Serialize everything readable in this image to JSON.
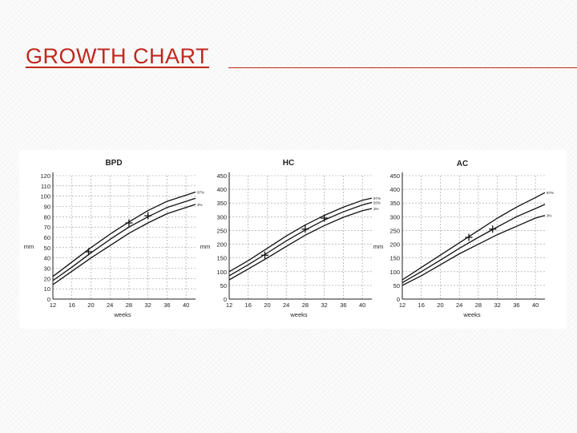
{
  "slide": {
    "title": "GROWTH CHART"
  },
  "colors": {
    "title": "#c0281f",
    "curve": "#111111",
    "grid": "#9a9a9a",
    "axis": "#222222"
  },
  "chart_data": [
    {
      "type": "line",
      "title": "BPD",
      "xlabel": "weeks",
      "ylabel": "mm",
      "x_ticks": [
        12,
        16,
        20,
        24,
        28,
        32,
        36,
        40
      ],
      "y_ticks": [
        0,
        10,
        20,
        30,
        40,
        50,
        60,
        70,
        80,
        90,
        100,
        110,
        120
      ],
      "xlim": [
        12,
        42
      ],
      "ylim": [
        0,
        120
      ],
      "grid": true,
      "series": [
        {
          "name": "97%",
          "x": [
            12,
            16,
            20,
            24,
            28,
            32,
            36,
            40,
            42
          ],
          "y": [
            22,
            36,
            50,
            63,
            75,
            86,
            95,
            101,
            104
          ]
        },
        {
          "name": "",
          "x": [
            12,
            16,
            20,
            24,
            28,
            32,
            36,
            40,
            42
          ],
          "y": [
            18,
            31,
            45,
            58,
            70,
            80,
            89,
            95,
            98
          ]
        },
        {
          "name": "3%",
          "x": [
            12,
            16,
            20,
            24,
            28,
            32,
            36,
            40,
            42
          ],
          "y": [
            14,
            27,
            40,
            52,
            64,
            74,
            83,
            89,
            92
          ]
        }
      ],
      "markers": [
        {
          "x": 19.5,
          "y": 46
        },
        {
          "x": 28,
          "y": 74
        },
        {
          "x": 32,
          "y": 81
        }
      ]
    },
    {
      "type": "line",
      "title": "HC",
      "xlabel": "weeks",
      "ylabel": "mm",
      "x_ticks": [
        12,
        16,
        20,
        24,
        28,
        32,
        36,
        40
      ],
      "y_ticks": [
        0,
        50,
        100,
        150,
        200,
        250,
        300,
        350,
        400,
        450
      ],
      "xlim": [
        12,
        42
      ],
      "ylim": [
        0,
        450
      ],
      "grid": true,
      "series": [
        {
          "name": "97%",
          "x": [
            12,
            16,
            20,
            24,
            28,
            32,
            36,
            40,
            42
          ],
          "y": [
            100,
            140,
            185,
            230,
            270,
            305,
            335,
            360,
            368
          ]
        },
        {
          "name": "50%",
          "x": [
            12,
            16,
            20,
            24,
            28,
            32,
            36,
            40,
            42
          ],
          "y": [
            85,
            125,
            168,
            212,
            252,
            288,
            318,
            343,
            352
          ]
        },
        {
          "name": "3%",
          "x": [
            12,
            16,
            20,
            24,
            28,
            32,
            36,
            40,
            42
          ],
          "y": [
            70,
            110,
            150,
            192,
            233,
            268,
            298,
            322,
            330
          ]
        }
      ],
      "markers": [
        {
          "x": 19.5,
          "y": 160
        },
        {
          "x": 28,
          "y": 255
        },
        {
          "x": 32,
          "y": 295
        }
      ]
    },
    {
      "type": "line",
      "title": "AC",
      "xlabel": "weeks",
      "ylabel": "mm",
      "x_ticks": [
        12,
        16,
        20,
        24,
        28,
        32,
        36,
        40
      ],
      "y_ticks": [
        0,
        50,
        100,
        150,
        200,
        250,
        300,
        350,
        400,
        450
      ],
      "xlim": [
        12,
        42
      ],
      "ylim": [
        0,
        450
      ],
      "grid": true,
      "series": [
        {
          "name": "97%",
          "x": [
            12,
            16,
            20,
            24,
            28,
            32,
            36,
            40,
            42
          ],
          "y": [
            70,
            115,
            160,
            205,
            250,
            295,
            335,
            370,
            388
          ]
        },
        {
          "name": "",
          "x": [
            12,
            16,
            20,
            24,
            28,
            32,
            36,
            40,
            42
          ],
          "y": [
            60,
            100,
            142,
            185,
            225,
            263,
            300,
            330,
            345
          ]
        },
        {
          "name": "3%",
          "x": [
            12,
            16,
            20,
            24,
            28,
            32,
            36,
            40,
            42
          ],
          "y": [
            50,
            85,
            125,
            165,
            200,
            235,
            265,
            295,
            305
          ]
        }
      ],
      "markers": [
        {
          "x": 26,
          "y": 225
        },
        {
          "x": 31,
          "y": 255
        }
      ]
    }
  ]
}
